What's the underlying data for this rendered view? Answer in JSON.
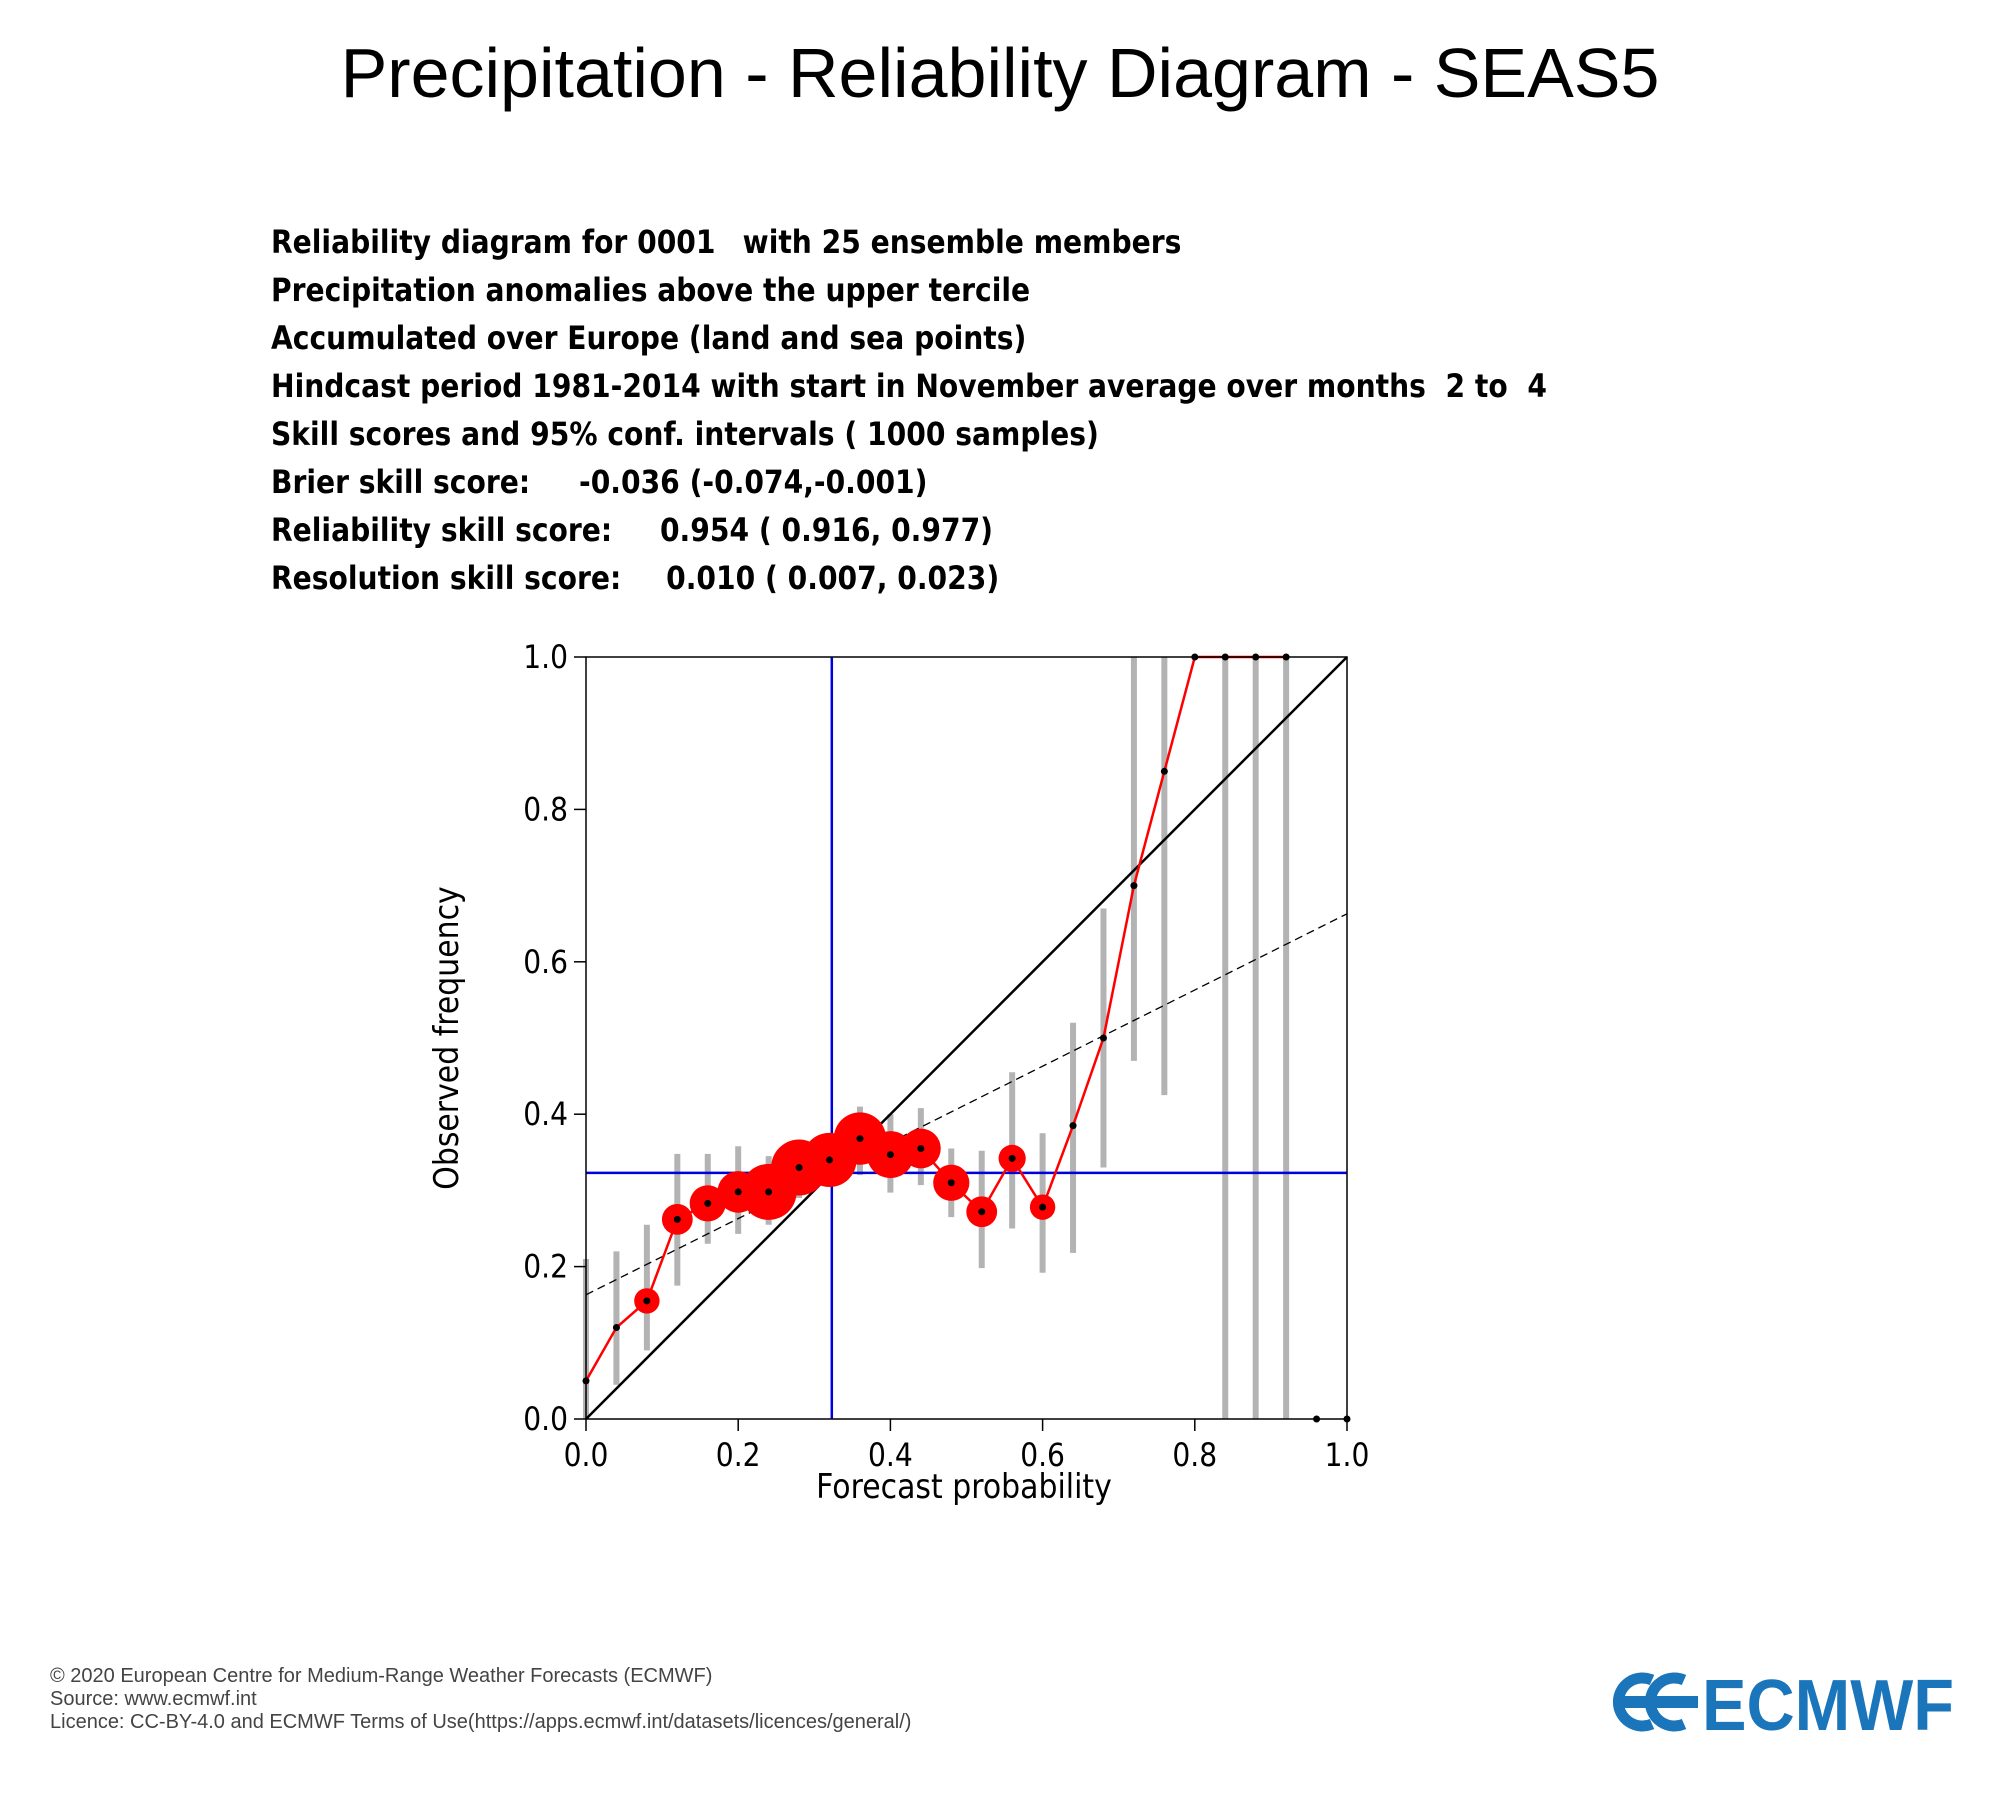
{
  "title": "Precipitation - Reliability Diagram - SEAS5",
  "info": {
    "line1_a": "Reliability diagram for 0001",
    "line1_b": "with 25 ensemble members",
    "line2": "Precipitation anomalies above the upper tercile",
    "line3": "Accumulated over Europe (land and sea points)",
    "line4": "Hindcast period 1981-2014 with start in November average over months  2 to  4",
    "line5": "Skill scores and 95% conf. intervals ( 1000 samples)",
    "line6_a": "Brier skill score:",
    "line6_b": "-0.036 (-0.074,-0.001)",
    "line7_a": "Reliability skill score:",
    "line7_b": "0.954 ( 0.916, 0.977)",
    "line8_a": "Resolution skill score:",
    "line8_b": "0.010 ( 0.007, 0.023)"
  },
  "chart_data": {
    "type": "scatter",
    "xlabel": "Forecast probability",
    "ylabel": "Observed frequency",
    "xlim": [
      0,
      1
    ],
    "ylim": [
      0,
      1
    ],
    "xticks": [
      "0.0",
      "0.2",
      "0.4",
      "0.6",
      "0.8",
      "1.0"
    ],
    "yticks": [
      "0.0",
      "0.2",
      "0.4",
      "0.6",
      "0.8",
      "1.0"
    ],
    "grid": false,
    "reliability_points": [
      {
        "x": 0.0,
        "y": 0.05,
        "ci": [
          0.0,
          0.21
        ],
        "weight": 0.0
      },
      {
        "x": 0.04,
        "y": 0.12,
        "ci": [
          0.045,
          0.22
        ],
        "weight": 0.0
      },
      {
        "x": 0.08,
        "y": 0.155,
        "ci": [
          0.09,
          0.255
        ],
        "weight": 0.15
      },
      {
        "x": 0.12,
        "y": 0.262,
        "ci": [
          0.175,
          0.348
        ],
        "weight": 0.3
      },
      {
        "x": 0.16,
        "y": 0.283,
        "ci": [
          0.23,
          0.348
        ],
        "weight": 0.45
      },
      {
        "x": 0.2,
        "y": 0.298,
        "ci": [
          0.243,
          0.358
        ],
        "weight": 0.6
      },
      {
        "x": 0.24,
        "y": 0.298,
        "ci": [
          0.255,
          0.345
        ],
        "weight": 1.0
      },
      {
        "x": 0.28,
        "y": 0.33,
        "ci": [
          0.29,
          0.362
        ],
        "weight": 1.0
      },
      {
        "x": 0.32,
        "y": 0.34,
        "ci": [
          0.305,
          0.373
        ],
        "weight": 0.95
      },
      {
        "x": 0.36,
        "y": 0.368,
        "ci": [
          0.32,
          0.41
        ],
        "weight": 0.9
      },
      {
        "x": 0.4,
        "y": 0.347,
        "ci": [
          0.297,
          0.4
        ],
        "weight": 0.75
      },
      {
        "x": 0.44,
        "y": 0.355,
        "ci": [
          0.307,
          0.408
        ],
        "weight": 0.55
      },
      {
        "x": 0.48,
        "y": 0.31,
        "ci": [
          0.265,
          0.355
        ],
        "weight": 0.45
      },
      {
        "x": 0.52,
        "y": 0.272,
        "ci": [
          0.198,
          0.352
        ],
        "weight": 0.3
      },
      {
        "x": 0.56,
        "y": 0.342,
        "ci": [
          0.25,
          0.455
        ],
        "weight": 0.2
      },
      {
        "x": 0.6,
        "y": 0.278,
        "ci": [
          0.192,
          0.375
        ],
        "weight": 0.15
      },
      {
        "x": 0.64,
        "y": 0.385,
        "ci": [
          0.218,
          0.52
        ],
        "weight": 0.0
      },
      {
        "x": 0.68,
        "y": 0.5,
        "ci": [
          0.33,
          0.67
        ],
        "weight": 0.0
      },
      {
        "x": 0.72,
        "y": 0.7,
        "ci": [
          0.47,
          1.0
        ],
        "weight": 0.0
      },
      {
        "x": 0.76,
        "y": 0.85,
        "ci": [
          0.425,
          1.0
        ],
        "weight": 0.0
      },
      {
        "x": 0.8,
        "y": 1.0,
        "ci": null,
        "weight": 0.0
      },
      {
        "x": 0.84,
        "y": 1.0,
        "ci": [
          0.0,
          1.0
        ],
        "weight": 0.0
      },
      {
        "x": 0.88,
        "y": 1.0,
        "ci": [
          0.0,
          1.0
        ],
        "weight": 0.0
      },
      {
        "x": 0.92,
        "y": 1.0,
        "ci": [
          0.0,
          1.0
        ],
        "weight": 0.0
      }
    ],
    "no_obs_points": [
      {
        "x": 0.96,
        "y": 0.0
      },
      {
        "x": 1.0,
        "y": 0.0
      }
    ],
    "diagonal": [
      [
        0,
        0
      ],
      [
        1,
        1
      ]
    ],
    "climatology": 0.323,
    "fit_line": [
      [
        0,
        0.163
      ],
      [
        1,
        0.663
      ]
    ],
    "colors": {
      "reliability": "#ff0000",
      "confidence": "#b3b3b3",
      "climatology": "#0000dd",
      "diagonal": "#000000",
      "fit": "#000000"
    }
  },
  "footer": {
    "copyright": "© 2020 European Centre for Medium-Range Weather Forecasts (ECMWF)",
    "source": "Source: www.ecmwf.int",
    "licence": "Licence: CC-BY-4.0 and ECMWF Terms of Use(https://apps.ecmwf.int/datasets/licences/general/)"
  },
  "logo": {
    "text": "ECMWF",
    "color": "#1b75bb",
    "icon": "ecmwf-logo-icon"
  }
}
